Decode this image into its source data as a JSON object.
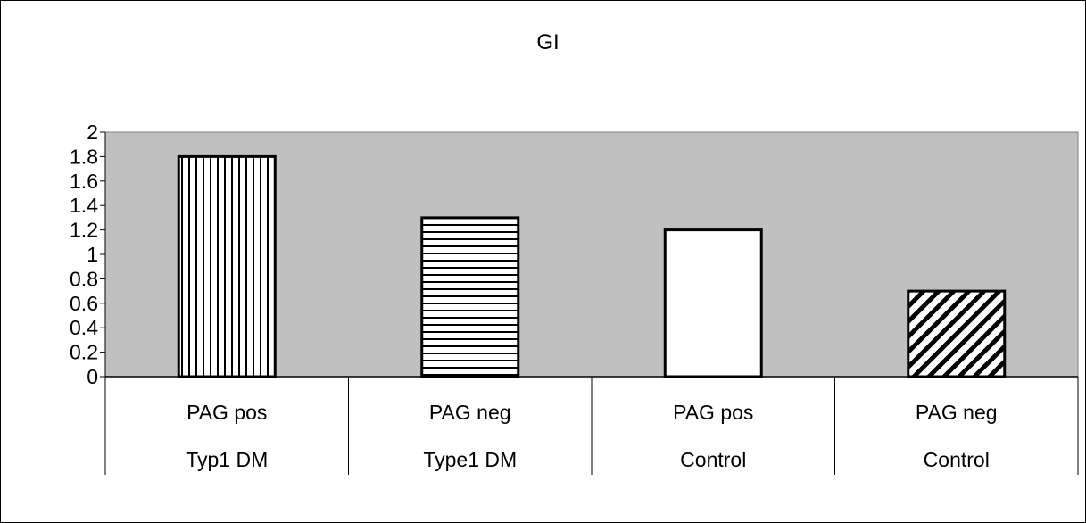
{
  "chart_data": {
    "type": "bar",
    "title": "GI",
    "categories": [
      {
        "level1": "PAG pos",
        "level2": "Typ1 DM"
      },
      {
        "level1": "PAG neg",
        "level2": "Type1 DM"
      },
      {
        "level1": "PAG pos",
        "level2": "Control"
      },
      {
        "level1": "PAG neg",
        "level2": "Control"
      }
    ],
    "values": [
      1.8,
      1.3,
      1.2,
      0.7
    ],
    "fill_patterns": [
      "vertical-lines",
      "horizontal-lines",
      "solid-white",
      "diagonal-lines"
    ],
    "yticks": [
      "0",
      "0.2",
      "0.4",
      "0.6",
      "0.8",
      "1",
      "1.2",
      "1.4",
      "1.6",
      "1.8",
      "2"
    ],
    "ylim": [
      0,
      2
    ],
    "xlabel": "",
    "ylabel": "",
    "grid": false,
    "legend": "none",
    "plot_background": "#c0c0c0",
    "bar_stroke": "#000000"
  }
}
